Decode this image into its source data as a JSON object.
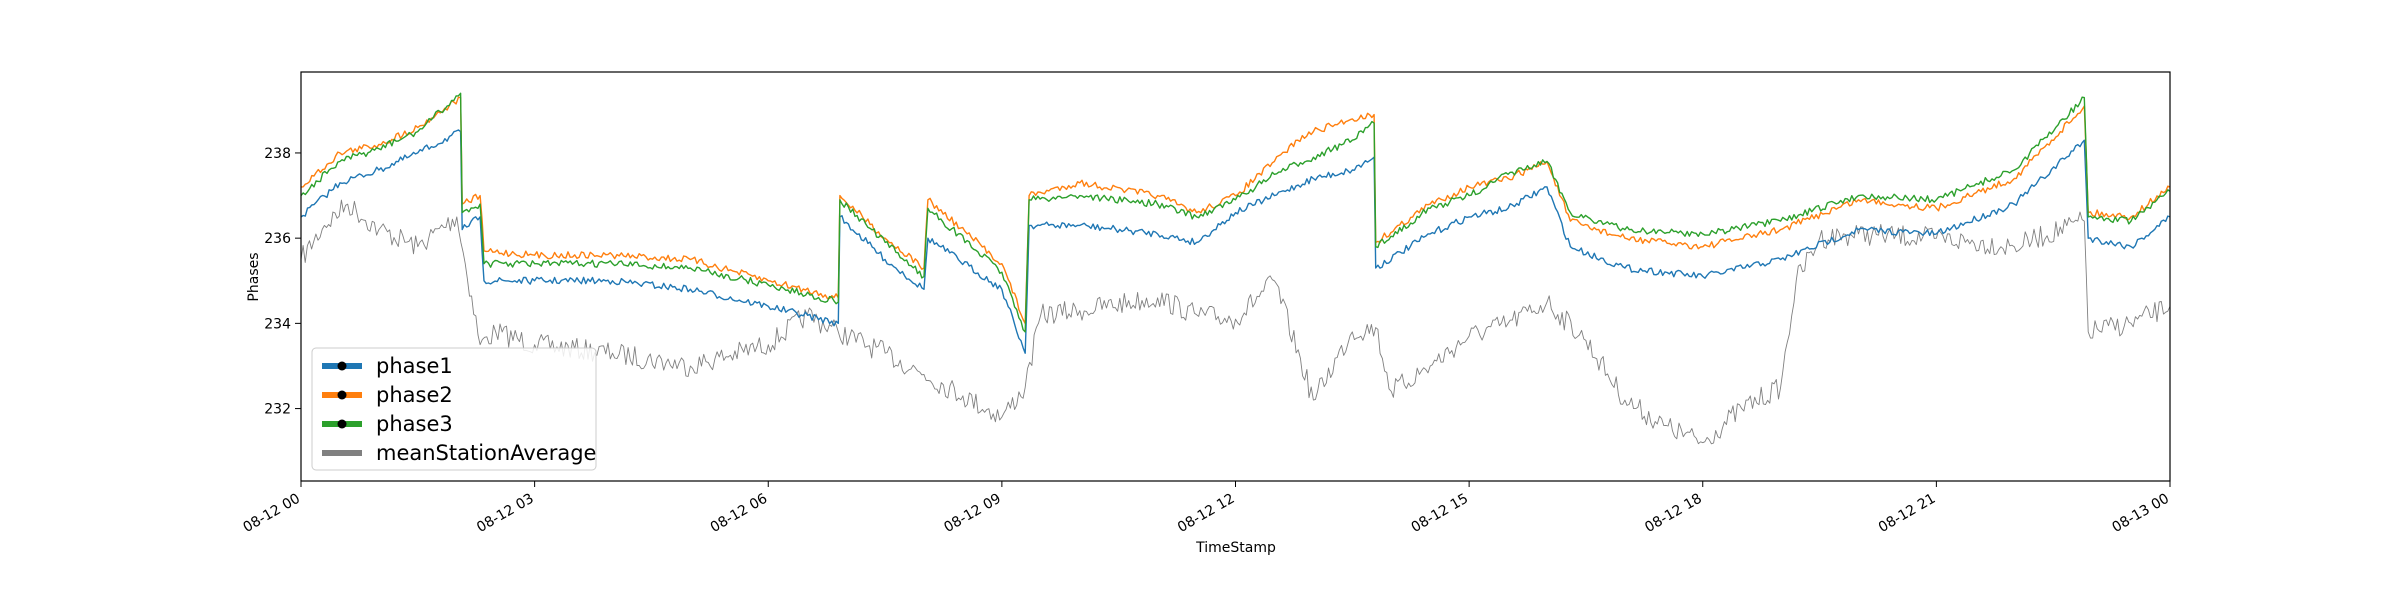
{
  "chart_data": {
    "type": "line",
    "title": "",
    "xlabel": "TimeStamp",
    "ylabel": "Phases",
    "x_ticks": [
      "08-12 00",
      "08-12 03",
      "08-12 06",
      "08-12 09",
      "08-12 12",
      "08-12 15",
      "08-12 18",
      "08-12 21",
      "08-13 00"
    ],
    "x_tick_hours": [
      0,
      3,
      6,
      9,
      12,
      15,
      18,
      21,
      24
    ],
    "xlim_hours": [
      0,
      24
    ],
    "y_ticks": [
      232,
      234,
      236,
      238
    ],
    "ylim": [
      230.3,
      239.9
    ],
    "grid": false,
    "legend_position": "lower-left",
    "series": [
      {
        "name": "phase1",
        "color": "#1f77b4",
        "x": [
          0,
          0.5,
          1.0,
          1.5,
          2.05,
          2.07,
          2.3,
          2.35,
          3,
          4,
          5,
          6,
          6.9,
          6.92,
          7.5,
          8.0,
          8.05,
          9.0,
          9.3,
          9.35,
          10,
          11,
          11.5,
          12,
          12.5,
          13,
          13.5,
          13.78,
          13.8,
          14.5,
          15,
          15.5,
          16.0,
          16.3,
          17,
          18,
          19,
          20,
          21,
          22,
          22.9,
          22.95,
          23.5,
          24
        ],
        "values": [
          236.5,
          237.3,
          237.6,
          238.0,
          238.5,
          236.2,
          236.5,
          235.0,
          235.0,
          235.0,
          234.8,
          234.4,
          234.0,
          236.5,
          235.5,
          234.8,
          236.0,
          234.8,
          233.3,
          236.3,
          236.3,
          236.1,
          235.9,
          236.6,
          237.0,
          237.4,
          237.6,
          237.9,
          235.3,
          236.1,
          236.5,
          236.7,
          237.2,
          235.8,
          235.3,
          235.1,
          235.5,
          236.2,
          236.1,
          236.8,
          238.3,
          236.0,
          235.8,
          236.5
        ]
      },
      {
        "name": "phase2",
        "color": "#ff7f0e",
        "x": [
          0,
          0.5,
          1.0,
          1.5,
          2.05,
          2.07,
          2.3,
          2.35,
          3,
          4,
          5,
          6,
          6.9,
          6.92,
          7.5,
          8.0,
          8.05,
          9.0,
          9.3,
          9.35,
          10,
          11,
          11.5,
          12,
          12.5,
          12.8,
          13,
          13.5,
          13.78,
          13.8,
          14.5,
          15,
          15.5,
          16.0,
          16.3,
          17,
          18,
          19,
          20,
          21,
          22,
          22.9,
          22.95,
          23.5,
          24
        ],
        "values": [
          237.2,
          238.0,
          238.2,
          238.6,
          239.3,
          236.8,
          237.0,
          235.7,
          235.6,
          235.6,
          235.5,
          235.0,
          234.6,
          237.0,
          236.0,
          235.3,
          236.9,
          235.4,
          234.0,
          237.0,
          237.3,
          237.0,
          236.6,
          237.0,
          237.8,
          238.3,
          238.5,
          238.8,
          238.9,
          235.9,
          236.8,
          237.2,
          237.4,
          237.8,
          236.4,
          236.0,
          235.8,
          236.2,
          236.9,
          236.7,
          237.4,
          239.1,
          236.6,
          236.5,
          237.2
        ]
      },
      {
        "name": "phase3",
        "color": "#2ca02c",
        "x": [
          0,
          0.5,
          1.0,
          1.5,
          2.05,
          2.07,
          2.3,
          2.35,
          3,
          4,
          5,
          6,
          6.9,
          6.92,
          7.5,
          8.0,
          8.05,
          9.0,
          9.3,
          9.35,
          10,
          11,
          11.5,
          12,
          12.5,
          13,
          13.5,
          13.78,
          13.8,
          14.5,
          15,
          15.5,
          16.0,
          16.3,
          17,
          18,
          19,
          20,
          21,
          22,
          22.9,
          22.95,
          23.5,
          24
        ],
        "values": [
          237.0,
          237.8,
          238.1,
          238.5,
          239.4,
          236.6,
          236.8,
          235.4,
          235.4,
          235.4,
          235.3,
          234.9,
          234.5,
          236.9,
          235.9,
          235.1,
          236.7,
          235.2,
          233.8,
          236.9,
          237.0,
          236.8,
          236.5,
          236.9,
          237.5,
          237.9,
          238.3,
          238.7,
          235.8,
          236.7,
          237.0,
          237.5,
          237.8,
          236.6,
          236.2,
          236.1,
          236.4,
          237.0,
          236.9,
          237.6,
          239.3,
          236.5,
          236.4,
          237.1
        ]
      },
      {
        "name": "meanStationAverage",
        "color": "#808080",
        "x": [
          0,
          0.3,
          0.6,
          1.0,
          1.5,
          2.0,
          2.3,
          2.5,
          3,
          4,
          5,
          6,
          6.5,
          6.9,
          7.5,
          8.0,
          8.5,
          9.0,
          9.3,
          9.5,
          10,
          11,
          11.5,
          12,
          12.5,
          13,
          13.5,
          13.8,
          14,
          14.5,
          15,
          15.5,
          16,
          16.5,
          17,
          17.5,
          18,
          18.5,
          19.0,
          19.2,
          19.5,
          20,
          21,
          22,
          22.9,
          22.95,
          23.5,
          24
        ],
        "values": [
          235.5,
          236.3,
          236.8,
          236.2,
          235.8,
          236.5,
          233.5,
          233.8,
          233.5,
          233.3,
          233.0,
          233.5,
          234.2,
          233.8,
          233.3,
          232.8,
          232.3,
          231.8,
          232.5,
          234.2,
          234.3,
          234.6,
          234.2,
          234.1,
          235.0,
          232.2,
          233.8,
          233.9,
          232.4,
          233.0,
          233.7,
          234.0,
          234.5,
          233.6,
          232.2,
          231.6,
          231.2,
          232.0,
          232.5,
          235.0,
          236.0,
          236.1,
          236.0,
          235.8,
          236.4,
          233.8,
          234.0,
          234.4
        ]
      }
    ]
  }
}
